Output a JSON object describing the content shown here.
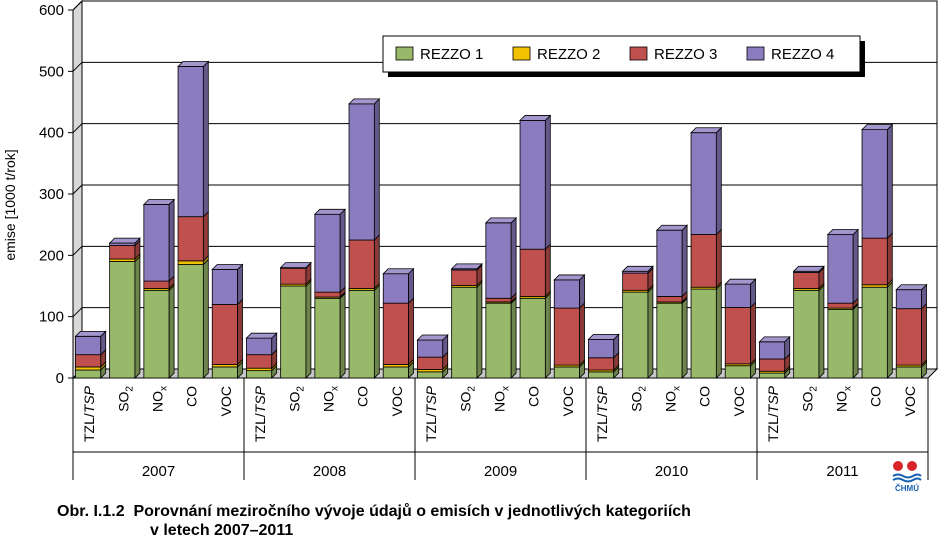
{
  "chart_data": {
    "type": "bar",
    "stacked": true,
    "ylabel": "emise [1000 t/rok]",
    "ylim": [
      0,
      600
    ],
    "yticks": [
      0,
      100,
      200,
      300,
      400,
      500,
      600
    ],
    "grid": true,
    "legend_position": "top-right",
    "years": [
      "2007",
      "2008",
      "2009",
      "2010",
      "2011"
    ],
    "pollutants": [
      {
        "main": "TZL/",
        "italic": "TSP",
        "sub": ""
      },
      {
        "main": "SO",
        "italic": "",
        "sub": "2"
      },
      {
        "main": "NO",
        "italic": "",
        "sub": "x"
      },
      {
        "main": "CO",
        "italic": "",
        "sub": ""
      },
      {
        "main": "VOC",
        "italic": "",
        "sub": ""
      }
    ],
    "series": [
      {
        "name": "REZZO 1",
        "color": "#98b86a",
        "values": [
          [
            13,
            190,
            143,
            185,
            18
          ],
          [
            12,
            150,
            130,
            143,
            18
          ],
          [
            10,
            148,
            122,
            130,
            18
          ],
          [
            10,
            140,
            122,
            145,
            20
          ],
          [
            8,
            143,
            112,
            148,
            18
          ]
        ]
      },
      {
        "name": "REZZO 2",
        "color": "#f2c200",
        "values": [
          [
            5,
            4,
            3,
            6,
            4
          ],
          [
            4,
            3,
            2,
            3,
            4
          ],
          [
            4,
            3,
            2,
            3,
            3
          ],
          [
            3,
            3,
            2,
            3,
            3
          ],
          [
            3,
            3,
            2,
            4,
            3
          ]
        ]
      },
      {
        "name": "REZZO 3",
        "color": "#c0504d",
        "values": [
          [
            20,
            22,
            12,
            72,
            98
          ],
          [
            22,
            26,
            8,
            79,
            100
          ],
          [
            20,
            25,
            6,
            77,
            93
          ],
          [
            20,
            28,
            9,
            86,
            92
          ],
          [
            20,
            26,
            8,
            76,
            92
          ]
        ]
      },
      {
        "name": "REZZO 4",
        "color": "#8b7cc0",
        "values": [
          [
            30,
            4,
            125,
            245,
            57
          ],
          [
            27,
            1,
            127,
            222,
            48
          ],
          [
            28,
            2,
            123,
            210,
            46
          ],
          [
            30,
            3,
            108,
            166,
            38
          ],
          [
            28,
            2,
            112,
            177,
            31
          ]
        ]
      }
    ]
  },
  "caption": {
    "line1": "Obr. I.1.2  Porovnání meziročního vývoje údajů o emisích v jednotlivých kategoriích",
    "line2": "v letech 2007–2011"
  },
  "logo": {
    "text": "ČHMÚ",
    "colors": [
      "#d9252a",
      "#1a63b0"
    ]
  }
}
